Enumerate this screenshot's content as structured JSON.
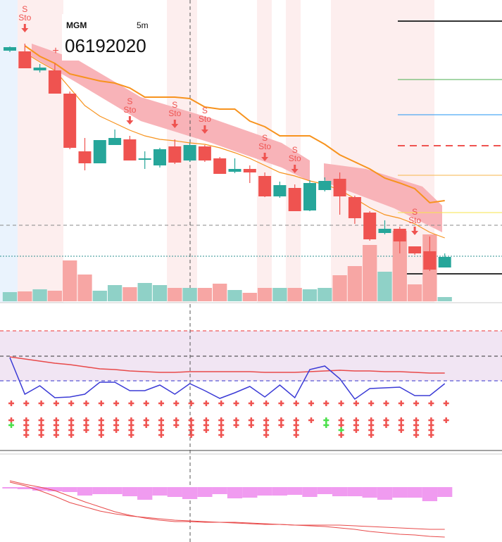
{
  "chart_data": {
    "type": "candlestick",
    "symbol": "MGM",
    "interval": "5m",
    "date": "06192020",
    "ylim": [
      0,
      430
    ],
    "open": [
      358,
      357,
      330,
      330,
      297,
      215,
      198,
      224,
      232,
      203,
      195,
      222,
      202,
      222,
      205,
      186,
      190,
      180,
      151,
      163,
      131,
      160,
      176,
      150,
      128,
      99,
      105,
      80,
      73,
      50
    ],
    "high": [
      364,
      368,
      339,
      340,
      300,
      234,
      231,
      246,
      237,
      215,
      220,
      232,
      227,
      224,
      207,
      205,
      195,
      185,
      172,
      168,
      174,
      178,
      185,
      152,
      130,
      117,
      108,
      80,
      94,
      70
    ],
    "low": [
      356,
      333,
      327,
      297,
      218,
      188,
      198,
      224,
      202,
      190,
      192,
      197,
      200,
      200,
      183,
      184,
      170,
      150,
      149,
      130,
      130,
      158,
      125,
      112,
      88,
      97,
      70,
      68,
      45,
      50
    ],
    "close": [
      363,
      333,
      334,
      297,
      220,
      198,
      231,
      234,
      202,
      205,
      218,
      199,
      224,
      202,
      183,
      190,
      185,
      151,
      167,
      130,
      170,
      173,
      151,
      120,
      90,
      105,
      87,
      70,
      47,
      65
    ],
    "up_color": "#26a69a",
    "down_color": "#ef5350",
    "volume_ylim": [
      0,
      428
    ],
    "volume": [
      13,
      14,
      17,
      15,
      58,
      38,
      15,
      23,
      20,
      26,
      23,
      19,
      19,
      19,
      25,
      16,
      12,
      19,
      19,
      19,
      17,
      19,
      37,
      50,
      80,
      42,
      100,
      24,
      95,
      6
    ],
    "volume_up_color": "#8fd1c7",
    "volume_down_color": "#f7a6a4",
    "lines": [
      {
        "color": "#f7931e",
        "values": [
          null,
          365,
          350,
          340,
          325,
          320,
          315,
          312,
          305,
          292,
          292,
          292,
          290,
          278,
          275,
          275,
          258,
          250,
          237,
          237,
          237,
          225,
          210,
          200,
          190,
          177,
          170,
          162,
          142,
          145
        ]
      },
      {
        "color": "#f7931e",
        "values": [
          null,
          355,
          342,
          330,
          305,
          280,
          265,
          255,
          245,
          237,
          232,
          230,
          227,
          225,
          220,
          213,
          205,
          195,
          185,
          180,
          173,
          168,
          160,
          148,
          135,
          125,
          120,
          112,
          100,
          92
        ]
      }
    ],
    "signal_labels": [
      null,
      "S",
      null,
      null,
      null,
      null,
      null,
      null,
      "S",
      null,
      null,
      "S",
      null,
      "S",
      null,
      null,
      null,
      "S",
      null,
      "S",
      null,
      null,
      null,
      null,
      null,
      null,
      null,
      "S",
      null,
      null
    ],
    "signal_sublabels": [
      null,
      "Sto",
      null,
      null,
      null,
      null,
      null,
      null,
      "Sto",
      null,
      null,
      "Sto",
      null,
      "Sto",
      null,
      null,
      null,
      "Sto",
      null,
      "Sto",
      null,
      null,
      null,
      null,
      null,
      null,
      null,
      "Sto",
      null,
      null
    ],
    "signal_color": "#ef5350",
    "stoch_ylim": [
      0,
      170
    ],
    "stoch_fast": {
      "color": "#3b3bd6",
      "values": [
        92,
        40,
        52,
        35,
        36,
        40,
        57,
        57,
        45,
        45,
        53,
        40,
        55,
        45,
        34,
        42,
        51,
        36,
        53,
        35,
        75,
        80,
        62,
        33,
        48,
        49,
        50,
        38,
        38,
        55
      ]
    },
    "stoch_slow": {
      "color": "#e84a4a",
      "values": [
        93,
        90,
        87,
        84,
        82,
        79,
        76,
        75,
        73,
        72,
        71,
        71,
        72,
        72,
        72,
        72,
        72,
        71,
        71,
        71,
        72,
        73,
        74,
        73,
        73,
        72,
        72,
        71,
        70,
        70
      ]
    },
    "histogram_ylim": [
      -78,
      47
    ],
    "histogram": [
      -2,
      -3,
      -5,
      -6,
      -7,
      -12,
      -10,
      -10,
      -13,
      -18,
      -12,
      -14,
      -17,
      -14,
      -10,
      -16,
      -15,
      -12,
      -12,
      -11,
      -14,
      -10,
      -13,
      -13,
      -15,
      -18,
      -15,
      -15,
      -20,
      -14
    ],
    "histogram_color": "#f09bf0",
    "macd_ylim": [
      -50,
      75
    ],
    "macd": {
      "color": "#e84a4a",
      "values": [
        37,
        32,
        28,
        23,
        15,
        7,
        0,
        -7,
        -12,
        -16,
        -19,
        -21,
        -21,
        -22,
        -22,
        -23,
        -24,
        -25,
        -25,
        -26,
        -26,
        -26,
        -26,
        -27,
        -28,
        -29,
        -30,
        -31,
        -32,
        -32
      ]
    },
    "macd_signal": {
      "color": "#e84a4a",
      "values": [
        35,
        30,
        23,
        15,
        6,
        0,
        -6,
        -10,
        -13,
        -15,
        -17,
        -19,
        -20,
        -21,
        -22,
        -22,
        -23,
        -24,
        -25,
        -26,
        -27,
        -28,
        -30,
        -32,
        -35,
        -37,
        -39,
        -40,
        -42,
        -43
      ]
    }
  }
}
